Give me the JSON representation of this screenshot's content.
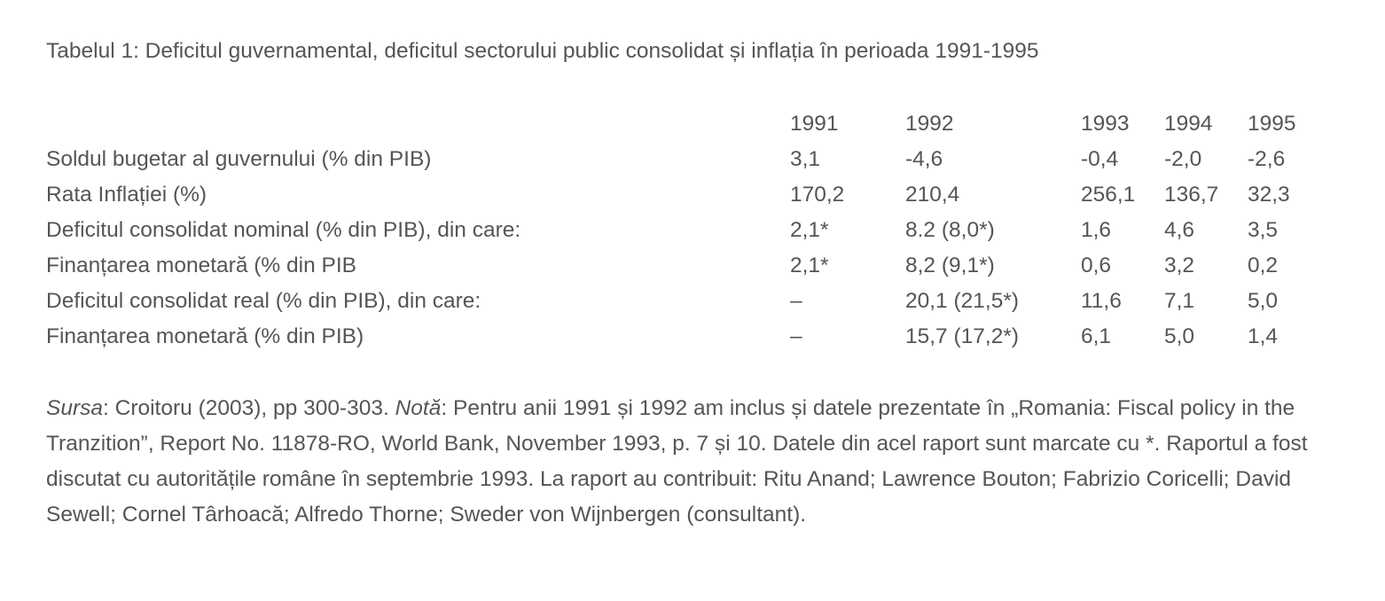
{
  "header": {
    "title": "Tabelul 1: Deficitul guvernamental, deficitul sectorului public consolidat și inflația în perioada 1991-1995"
  },
  "table": {
    "columns": [
      "1991",
      "1992",
      "1993",
      "1994",
      "1995"
    ],
    "rows": [
      [
        "Soldul bugetar al guvernului (% din PIB)",
        "3,1",
        "-4,6",
        "-0,4",
        "-2,0",
        "-2,6"
      ],
      [
        "Rata Inflației (%)",
        "170,2",
        "210,4",
        "256,1",
        "136,7",
        "32,3"
      ],
      [
        "Deficitul consolidat nominal (% din PIB), din care:",
        "2,1*",
        "8.2 (8,0*)",
        "1,6",
        "4,6",
        "3,5"
      ],
      [
        "Finanțarea monetară (% din PIB",
        "2,1*",
        "8,2 (9,1*)",
        "0,6",
        "3,2",
        "0,2"
      ],
      [
        "Deficitul consolidat real (% din PIB), din care:",
        "–",
        "20,1 (21,5*)",
        "11,6",
        "7,1",
        "5,0"
      ],
      [
        "Finanțarea monetară (% din PIB)",
        "–",
        "15,7 (17,2*)",
        "6,1",
        "5,0",
        "1,4"
      ]
    ]
  },
  "note": {
    "source_label": "Sursa",
    "source_text": ": Croitoru (2003), pp 300-303. ",
    "note_label": "Notă",
    "note_text": ": Pentru anii 1991 și 1992 am inclus și datele prezentate în „Romania: Fiscal policy in the Tranzition”, Report No. 11878-RO, World Bank, November 1993, p. 7 și 10. Datele din acel raport sunt marcate cu *. Raportul a fost discutat cu autoritățile române în septembrie 1993. La raport au contribuit: Ritu Anand; Lawrence Bouton; Fabrizio Coricelli; David Sewell; Cornel Târhoacă; Alfredo Thorne; Sweder von Wijnbergen (consultant)."
  }
}
